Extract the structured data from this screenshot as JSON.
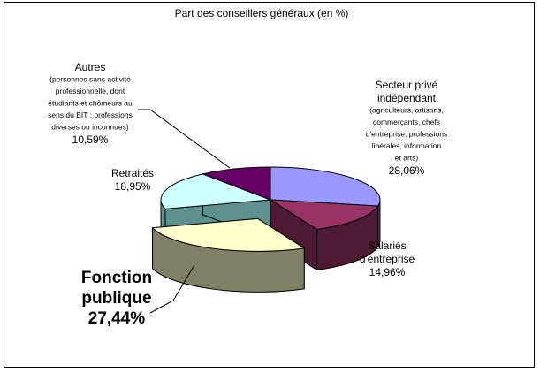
{
  "chart_data": {
    "type": "pie",
    "title": "Part des conseillers généraux (en %)",
    "three_d": true,
    "slices": [
      {
        "name": "Secteur privé indépendant",
        "label_lines": [
          "Secteur privé",
          "indépendant"
        ],
        "note_lines": [
          "(agriculteurs, artisans,",
          "commerçants, chefs",
          "d'entreprise, professions",
          "libérales, information",
          "et arts)"
        ],
        "value": 28.06,
        "value_label": "28,06%",
        "color": "#9999ff",
        "side_color": "#4d4d85"
      },
      {
        "name": "Salariés d'entreprise",
        "label_lines": [
          "Salariés",
          "d'entreprise"
        ],
        "note_lines": [],
        "value": 14.96,
        "value_label": "14,96%",
        "color": "#993366",
        "side_color": "#4d1a33"
      },
      {
        "name": "Fonction publique",
        "label_lines": [
          "Fonction",
          "publique"
        ],
        "note_lines": [],
        "value": 27.44,
        "value_label": "27,44%",
        "color": "#ffffcc",
        "side_color": "#808066",
        "exploded": true,
        "emphasis": true
      },
      {
        "name": "Retraités",
        "label_lines": [
          "Retraités"
        ],
        "note_lines": [],
        "value": 18.95,
        "value_label": "18,95%",
        "color": "#ccffff",
        "side_color": "#5f9090"
      },
      {
        "name": "Autres",
        "label_lines": [
          "Autres"
        ],
        "note_lines": [
          "(personnes sans activité",
          "professionnelle, dont",
          "étudiants et chômeurs au",
          "sens du BIT ; professions",
          "diverses ou inconnues)"
        ],
        "value": 10.59,
        "value_label": "10,59%",
        "color": "#660066",
        "side_color": "#330033"
      }
    ]
  }
}
